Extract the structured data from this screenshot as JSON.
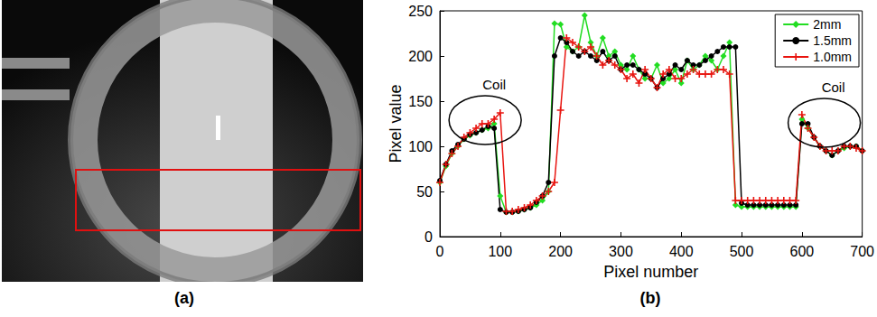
{
  "panel_a": {
    "caption": "(a)"
  },
  "chart_data": {
    "type": "line",
    "caption": "(b)",
    "x_label": "Pixel number",
    "y_label": "Pixel value",
    "xlim": [
      0,
      700
    ],
    "xticks": [
      0,
      100,
      200,
      300,
      400,
      500,
      600,
      700
    ],
    "ylim": [
      0,
      250
    ],
    "yticks": [
      0,
      50,
      100,
      150,
      200,
      250
    ],
    "grid": false,
    "legend": "upper right",
    "x": [
      0,
      10,
      20,
      30,
      40,
      50,
      60,
      70,
      80,
      90,
      100,
      110,
      120,
      130,
      140,
      150,
      160,
      170,
      180,
      190,
      200,
      210,
      220,
      230,
      240,
      250,
      260,
      270,
      280,
      290,
      300,
      310,
      320,
      330,
      340,
      350,
      360,
      370,
      380,
      390,
      400,
      410,
      420,
      430,
      440,
      450,
      460,
      470,
      480,
      490,
      500,
      510,
      520,
      530,
      540,
      550,
      560,
      570,
      580,
      590,
      600,
      610,
      620,
      630,
      640,
      650,
      660,
      670,
      680,
      690,
      700
    ],
    "series": [
      {
        "name": "2mm",
        "color": "#22dd22",
        "marker": "diamond",
        "values": [
          60,
          78,
          92,
          100,
          108,
          112,
          115,
          118,
          120,
          125,
          45,
          27,
          27,
          28,
          30,
          32,
          35,
          40,
          50,
          236,
          235,
          210,
          205,
          210,
          245,
          215,
          200,
          220,
          200,
          205,
          190,
          185,
          200,
          185,
          175,
          175,
          190,
          170,
          175,
          185,
          170,
          195,
          185,
          190,
          200,
          195,
          185,
          200,
          215,
          35,
          33,
          33,
          33,
          33,
          33,
          33,
          33,
          33,
          33,
          33,
          130,
          120,
          110,
          100,
          95,
          90,
          95,
          98,
          100,
          100,
          95
        ]
      },
      {
        "name": "1.5mm",
        "color": "#000000",
        "marker": "circle",
        "values": [
          62,
          80,
          95,
          102,
          108,
          113,
          115,
          118,
          122,
          120,
          30,
          27,
          27,
          28,
          30,
          32,
          38,
          45,
          60,
          200,
          220,
          215,
          205,
          200,
          205,
          200,
          195,
          205,
          195,
          200,
          185,
          190,
          190,
          185,
          180,
          175,
          165,
          175,
          180,
          190,
          185,
          195,
          190,
          190,
          195,
          200,
          205,
          210,
          210,
          210,
          37,
          35,
          35,
          35,
          35,
          35,
          35,
          35,
          35,
          35,
          125,
          125,
          110,
          100,
          95,
          90,
          95,
          100,
          100,
          100,
          95
        ]
      },
      {
        "name": "1.0mm",
        "color": "#e8140f",
        "marker": "plus",
        "values": [
          60,
          80,
          92,
          100,
          110,
          115,
          120,
          125,
          125,
          130,
          137,
          28,
          28,
          30,
          32,
          35,
          40,
          45,
          50,
          60,
          140,
          220,
          215,
          210,
          205,
          210,
          200,
          190,
          195,
          190,
          185,
          175,
          180,
          170,
          185,
          175,
          165,
          180,
          185,
          175,
          175,
          180,
          185,
          180,
          180,
          180,
          185,
          185,
          180,
          40,
          40,
          40,
          40,
          40,
          40,
          40,
          40,
          40,
          40,
          40,
          135,
          120,
          110,
          100,
          95,
          95,
          95,
          100,
          100,
          98,
          95
        ]
      }
    ],
    "annotations": [
      {
        "text": "Coil",
        "x": 90,
        "y": 169
      },
      {
        "text": "Coil",
        "x": 652,
        "y": 166
      }
    ]
  }
}
